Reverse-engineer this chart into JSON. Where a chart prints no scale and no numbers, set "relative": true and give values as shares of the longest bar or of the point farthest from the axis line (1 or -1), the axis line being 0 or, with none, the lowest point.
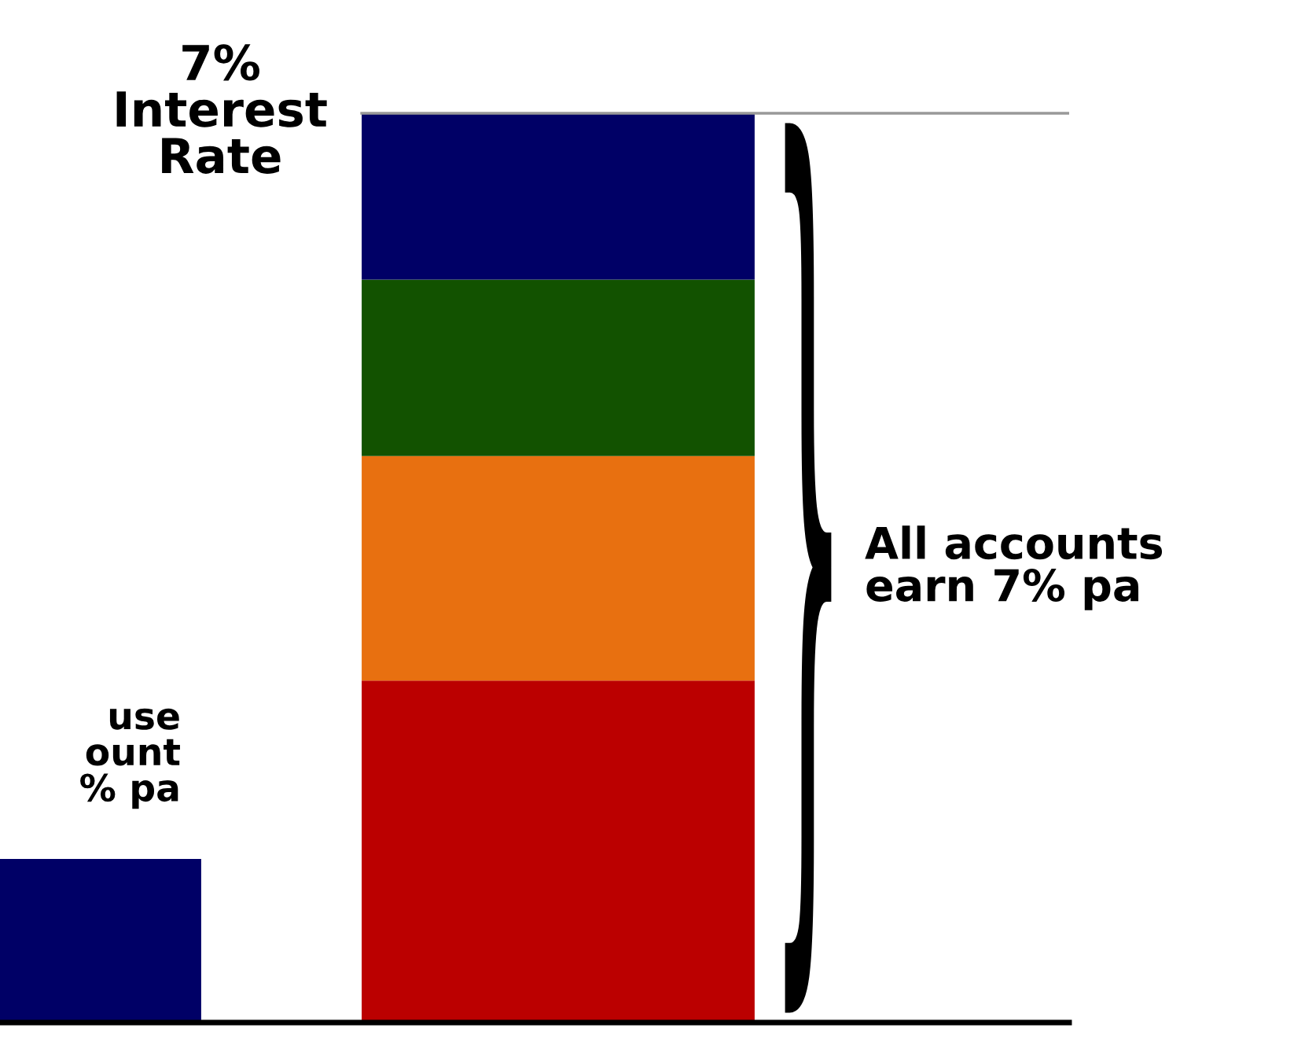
{
  "chart_data": {
    "type": "bar",
    "stacked": true,
    "relative": true,
    "categories": [
      null,
      null
    ],
    "series": [
      {
        "colors": [
          "#000066",
          "#bb0000"
        ],
        "values": [
          0.18,
          0.376
        ]
      },
      {
        "colors": [
          "#e87010",
          "#e87010"
        ],
        "values": [
          null,
          0.247
        ]
      },
      {
        "colors": [
          "#125200",
          "#125200"
        ],
        "values": [
          null,
          0.194
        ]
      },
      {
        "colors": [
          "#000066",
          "#000066"
        ],
        "values": [
          null,
          0.183
        ]
      }
    ],
    "ref_lines": [
      {
        "axis": "y",
        "value": 1,
        "label": "7%\nInterest\nRate",
        "color": "#999999"
      }
    ],
    "annotations": [
      "All accounts\nearn 7% pa",
      "use\nount\n% pa"
    ],
    "grid": false,
    "legend": false
  }
}
